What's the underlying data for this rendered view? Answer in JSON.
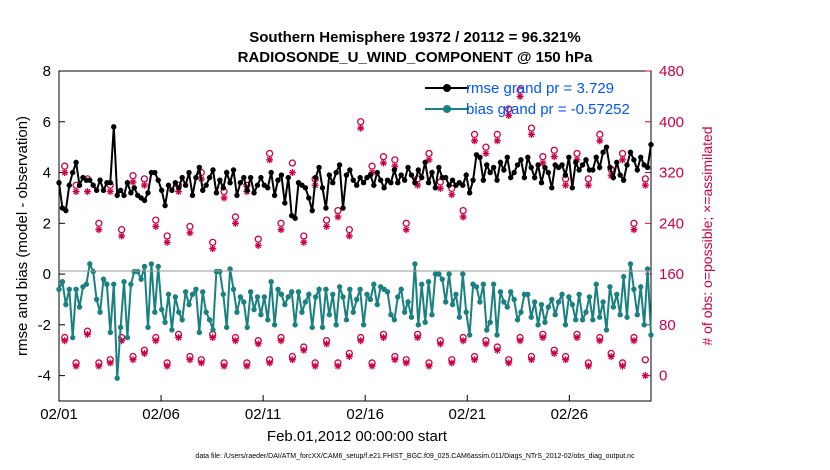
{
  "chart_data": {
    "type": "line",
    "title": "Southern Hemisphere 19372 / 20112 = 96.321%",
    "subtitle": "RADIOSONDE_U_WIND_COMPONENT @ 150 hPa",
    "xlabel": "Feb.01,2012 00:00:00 start",
    "ylabel": "rmse and bias (model - observation)",
    "ylabel_right": "# of obs: o=possible; ×=assimilated",
    "footnote": "data file: /Users/raeder/DAI/ATM_forcXX/CAM6_setup/f.e21.FHIST_BGC.f09_025.CAM6assim.011/Diags_NTrS_2012-02/obs_diag_output.nc",
    "xlim": [
      0,
      29
    ],
    "ylim": [
      -5,
      8
    ],
    "ylim_right": [
      -40,
      480
    ],
    "x_ticks": [
      0,
      5,
      10,
      15,
      20,
      25
    ],
    "x_tick_labels": [
      "02/01",
      "02/06",
      "02/11",
      "02/16",
      "02/21",
      "02/26"
    ],
    "y_ticks": [
      -4,
      -2,
      0,
      2,
      4,
      6,
      8
    ],
    "y_tick_labels": [
      "-4",
      "-2",
      "0",
      "2",
      "4",
      "6",
      "8"
    ],
    "y_right_ticks": [
      0,
      80,
      160,
      240,
      320,
      400,
      480
    ],
    "y_right_tick_labels": [
      "0",
      "80",
      "160",
      "240",
      "320",
      "400",
      "480"
    ],
    "series": [
      {
        "name": "rmse grand pr = 3.729",
        "color": "#000000",
        "values": [
          3.6,
          2.6,
          2.5,
          3.5,
          4.0,
          4.4,
          3.5,
          3.8,
          3.7,
          3.7,
          3.5,
          3.3,
          3.7,
          3.3,
          3.6,
          3.6,
          5.8,
          3.1,
          3.3,
          3.1,
          3.6,
          3.2,
          3.4,
          3.1,
          3.0,
          2.9,
          3.2,
          4.0,
          4.0,
          3.7,
          3.3,
          2.7,
          3.5,
          3.3,
          3.6,
          3.4,
          3.8,
          3.5,
          4.0,
          3.1,
          3.8,
          4.2,
          3.3,
          3.5,
          3.8,
          4.1,
          3.2,
          3.7,
          3.4,
          4.0,
          3.6,
          4.1,
          3.1,
          3.6,
          3.8,
          3.3,
          3.8,
          3.2,
          3.5,
          3.8,
          3.5,
          3.4,
          4.0,
          3.1,
          3.7,
          3.9,
          2.8,
          3.8,
          2.3,
          2.2,
          3.6,
          3.5,
          3.4,
          3.0,
          2.5,
          3.8,
          4.2,
          3.4,
          2.6,
          3.9,
          3.6,
          4.0,
          4.3,
          2.6,
          3.9,
          4.1,
          3.7,
          3.5,
          3.8,
          3.6,
          3.8,
          3.9,
          3.5,
          4.0,
          3.7,
          3.4,
          3.7,
          3.6,
          4.1,
          3.6,
          3.9,
          3.7,
          4.2,
          3.9,
          3.6,
          4.1,
          3.8,
          4.4,
          3.6,
          4.0,
          3.4,
          4.2,
          3.8,
          3.8,
          3.5,
          3.7,
          3.5,
          3.6,
          3.5,
          3.9,
          3.2,
          3.7,
          4.7,
          4.6,
          3.7,
          4.3,
          4.0,
          4.2,
          3.7,
          4.4,
          4.1,
          4.6,
          3.8,
          4.0,
          4.3,
          4.5,
          3.8,
          4.6,
          4.2,
          3.8,
          4.3,
          3.6,
          4.2,
          4.0,
          3.4,
          4.3,
          4.2,
          4.3,
          3.9,
          4.6,
          3.4,
          4.4,
          4.1,
          4.3,
          4.5,
          4.1,
          4.1,
          4.6,
          4.2,
          4.8,
          5.0,
          4.2,
          3.8,
          4.4,
          3.9,
          3.7,
          4.3,
          4.8,
          4.5,
          4.1,
          4.6,
          4.3,
          4.2,
          5.1
        ]
      },
      {
        "name": "bias grand pr = -0.57252",
        "color": "#1a8080",
        "values": [
          -0.6,
          -0.3,
          -1.2,
          -0.6,
          -2.5,
          -0.6,
          -1.3,
          -0.5,
          -0.4,
          0.4,
          0.1,
          -1.0,
          -1.5,
          -0.2,
          -0.4,
          -2.3,
          -0.4,
          -4.1,
          -2.1,
          -0.3,
          -2.5,
          -0.4,
          0.1,
          0.1,
          -0.2,
          0.3,
          -2.1,
          0.4,
          -1.5,
          0.3,
          -1.4,
          -1.9,
          -0.8,
          -2.2,
          -0.9,
          -1.5,
          -1.8,
          -0.7,
          -1.2,
          -0.8,
          -0.6,
          -2.3,
          -0.7,
          -1.5,
          -1.8,
          -2.2,
          0.1,
          0.1,
          -0.8,
          -2.1,
          0.2,
          -0.6,
          -1.5,
          -0.9,
          -1.1,
          -2.1,
          -0.7,
          -1.4,
          -0.9,
          -1.6,
          -0.9,
          -1.8,
          -0.3,
          -2.0,
          -0.6,
          -0.8,
          -1.2,
          -0.9,
          -0.7,
          -2.0,
          -0.7,
          -1.5,
          -1.1,
          -0.8,
          -2.1,
          -0.9,
          -0.6,
          -2.1,
          -0.6,
          -1.6,
          -0.8,
          -2.0,
          -0.5,
          -0.9,
          -1.8,
          -0.6,
          -1.5,
          -1.0,
          -0.6,
          -2.0,
          -0.8,
          -1.0,
          -0.4,
          -1.2,
          -0.5,
          -0.6,
          -0.7,
          -1.6,
          -1.8,
          -0.9,
          -0.6,
          -1.5,
          -1.1,
          -1.7,
          0.4,
          -2.0,
          -0.4,
          -1.9,
          -0.3,
          -1.6,
          0.0,
          0.0,
          -0.2,
          -1.1,
          0.0,
          -1.2,
          -0.8,
          -1.7,
          0.0,
          -1.5,
          -2.4,
          -0.4,
          -0.5,
          -1.1,
          -0.4,
          -2.2,
          -1.9,
          -0.4,
          -2.4,
          -0.7,
          -1.1,
          -1.3,
          -0.7,
          -1.0,
          -1.8,
          -1.5,
          -0.8,
          -0.8,
          -1.7,
          -1.1,
          -2.0,
          -1.2,
          -1.9,
          -1.3,
          -1.0,
          -1.6,
          -1.1,
          -0.8,
          -2.0,
          -0.9,
          -1.2,
          -1.8,
          -0.8,
          -1.8,
          -1.5,
          -0.9,
          -1.8,
          -0.4,
          -1.7,
          -1.1,
          -2.2,
          -0.5,
          -1.3,
          -0.8,
          -1.6,
          -0.1,
          -1.7,
          0.4,
          -0.6,
          -1.6,
          -0.5,
          -2.0,
          0.2,
          -2.4
        ]
      }
    ],
    "obs_possible": [
      330,
      300,
      310,
      240,
      300,
      230,
      315,
      310,
      245,
      220,
      300,
      235,
      320,
      210,
      290,
      250,
      300,
      215,
      350,
      240,
      335,
      220,
      310,
      245,
      260,
      230,
      400,
      330,
      345,
      340,
      240,
      310,
      350,
      305,
      295,
      260,
      380,
      360,
      380,
      420,
      450,
      390,
      345,
      355,
      310,
      350,
      310,
      380,
      325,
      350,
      240,
      310
    ],
    "obs_assimilated": [
      320,
      290,
      290,
      230,
      290,
      220,
      305,
      300,
      235,
      210,
      290,
      225,
      310,
      200,
      280,
      240,
      290,
      205,
      340,
      230,
      320,
      210,
      300,
      235,
      250,
      220,
      390,
      320,
      335,
      330,
      230,
      300,
      340,
      295,
      285,
      250,
      370,
      350,
      370,
      410,
      440,
      380,
      335,
      345,
      300,
      340,
      300,
      370,
      315,
      340,
      230,
      300
    ],
    "obs_possible_low": [
      60,
      20,
      70,
      20,
      25,
      60,
      30,
      40,
      60,
      20,
      65,
      30,
      25,
      65,
      20,
      60,
      20,
      55,
      25,
      60,
      30,
      45,
      20,
      55,
      20,
      35,
      60,
      20,
      65,
      30,
      25,
      65,
      20,
      55,
      25,
      60,
      30,
      55,
      45,
      25,
      60,
      30,
      65,
      40,
      30,
      65,
      20,
      60,
      35,
      20,
      60,
      25
    ],
    "obs_assimilated_low": [
      55,
      15,
      65,
      15,
      20,
      55,
      25,
      35,
      55,
      15,
      60,
      25,
      20,
      60,
      15,
      55,
      15,
      50,
      20,
      55,
      25,
      40,
      15,
      50,
      15,
      30,
      55,
      15,
      60,
      25,
      20,
      60,
      15,
      50,
      20,
      55,
      25,
      50,
      40,
      20,
      55,
      25,
      60,
      35,
      25,
      60,
      15,
      55,
      30,
      15,
      55,
      0
    ],
    "legend": [
      "rmse grand pr = 3.729",
      "bias grand pr = -0.57252"
    ],
    "legend_position": "top-right"
  }
}
